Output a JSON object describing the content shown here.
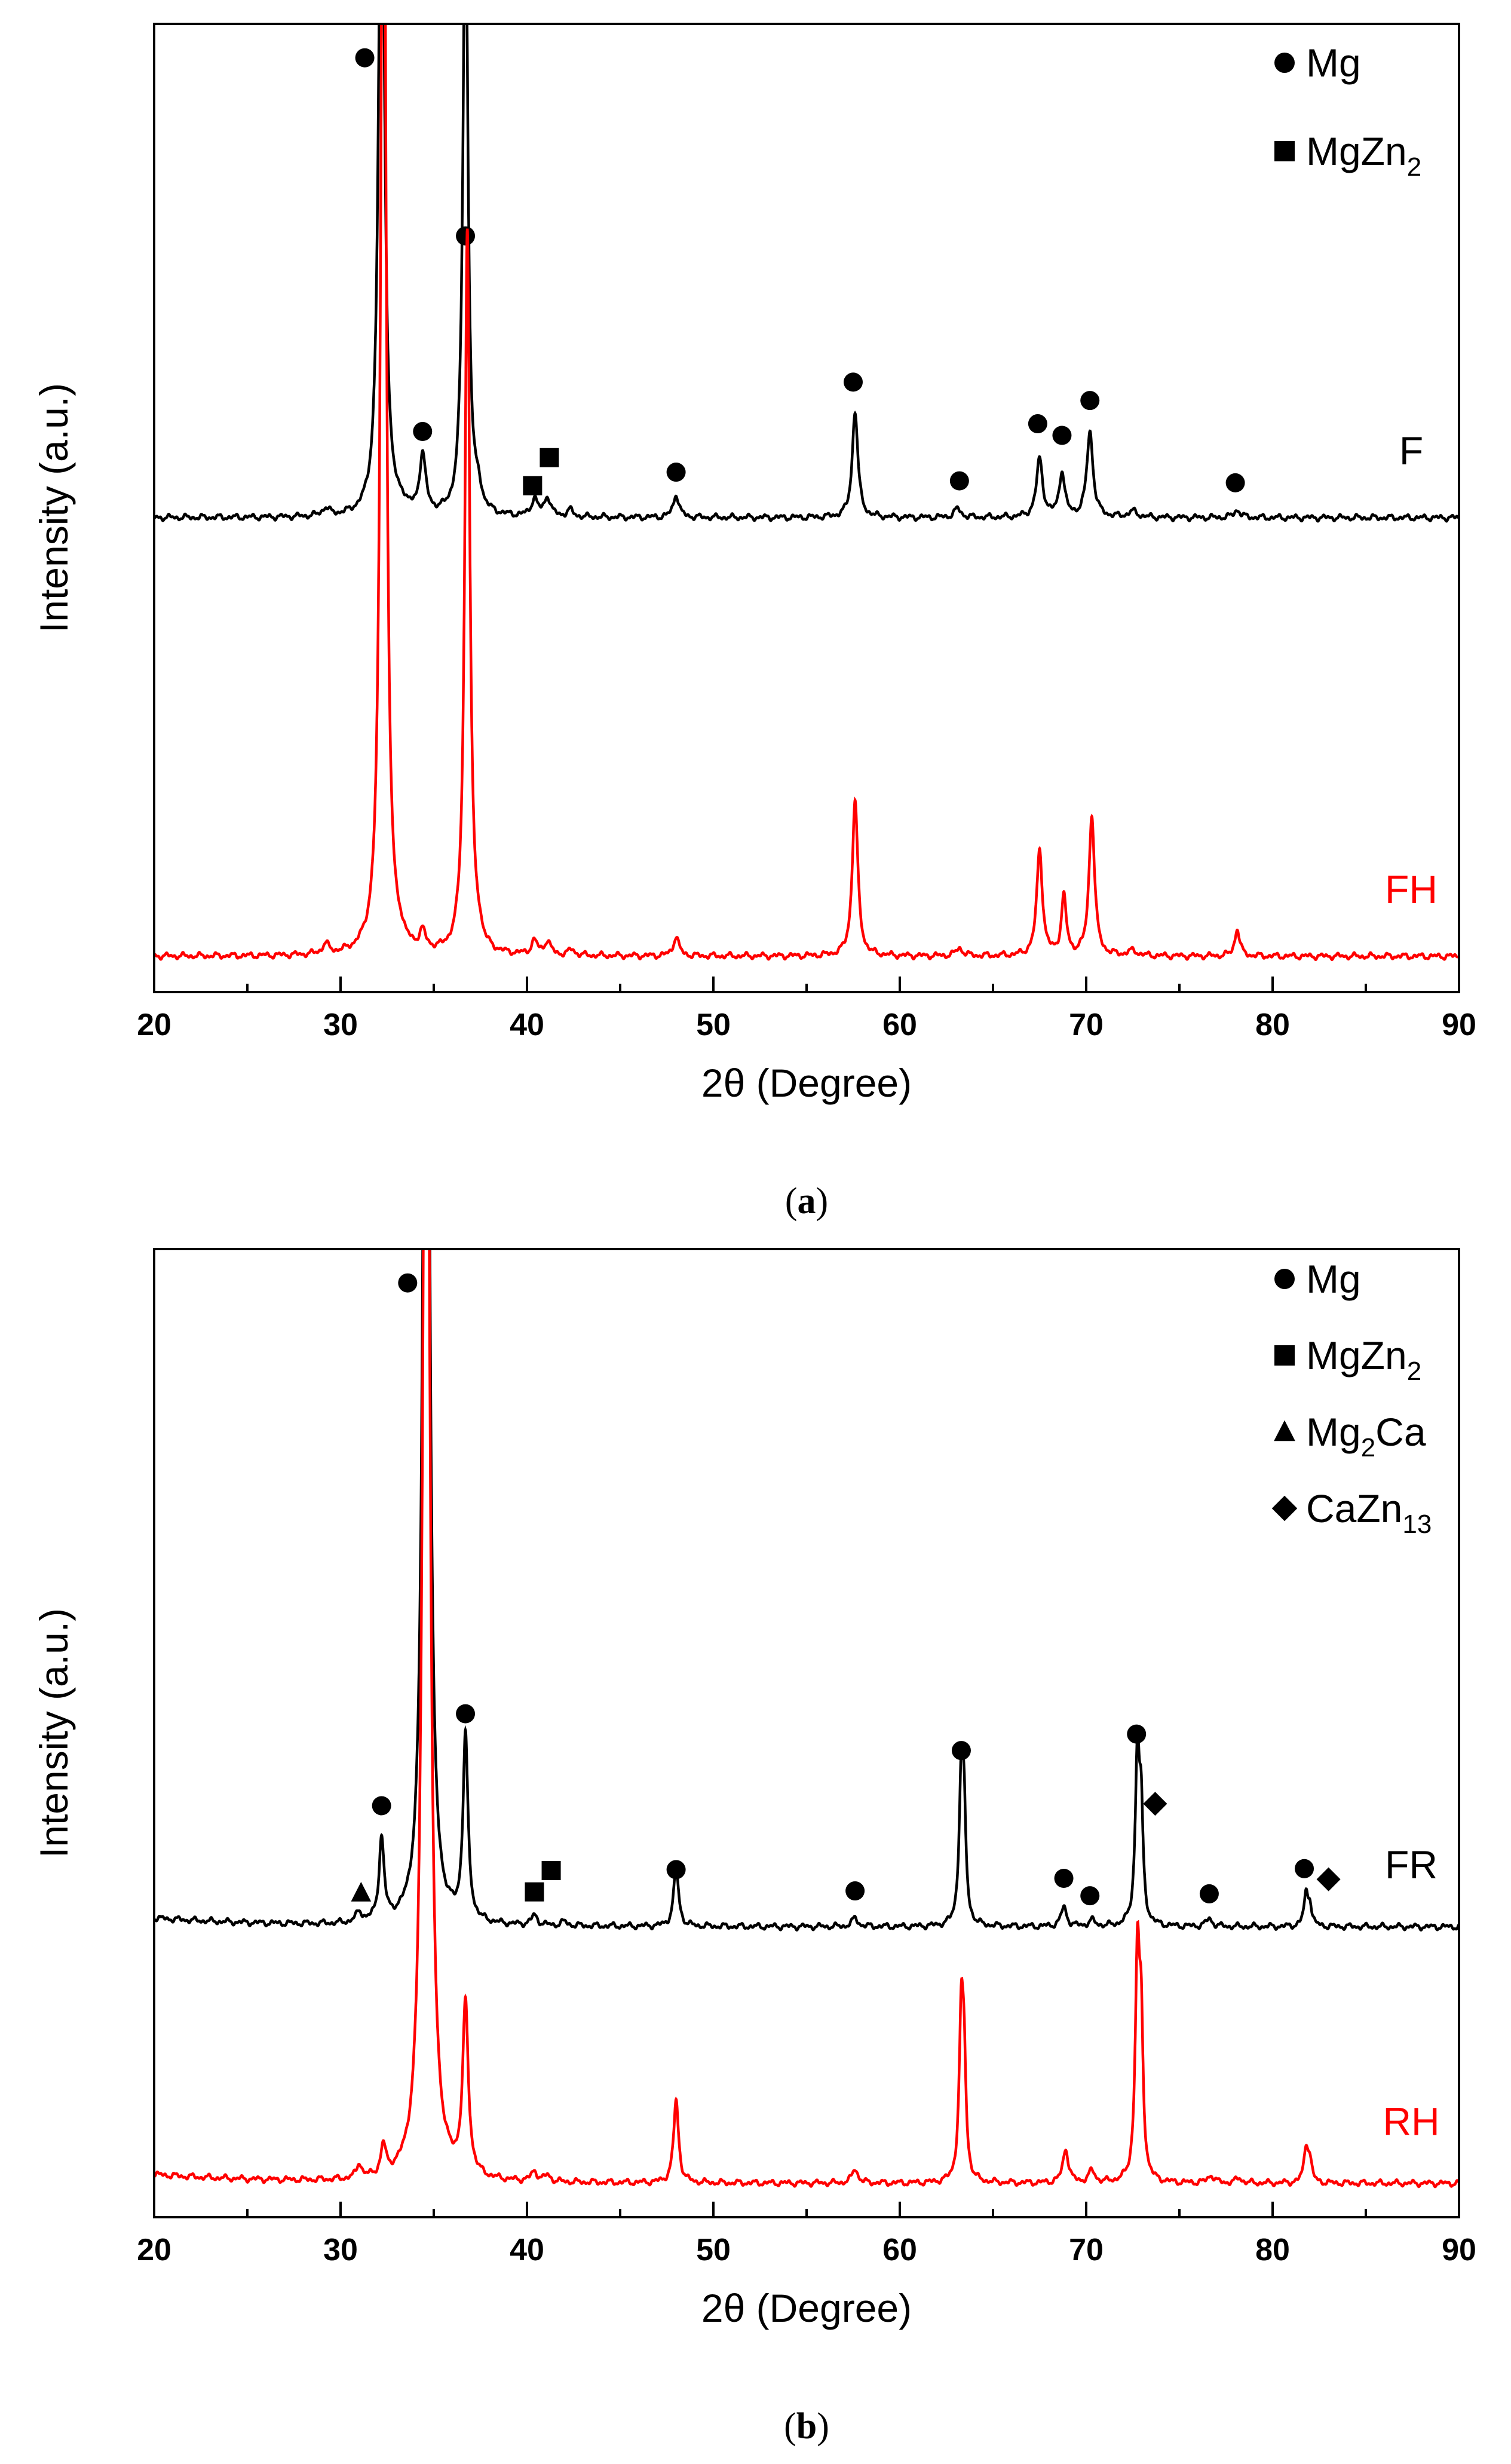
{
  "chart_data": [
    {
      "type": "line",
      "panel_label": "(a)",
      "panel_letter": "a",
      "xlabel": "2θ (Degree)",
      "ylabel": "Intensity (a.u.)",
      "xlim": [
        20,
        90
      ],
      "ylim": [
        0,
        100
      ],
      "xticks": [
        20,
        30,
        40,
        50,
        60,
        70,
        80,
        90
      ],
      "legend": {
        "position": "top-right",
        "entries": [
          {
            "marker": "circle",
            "label": "Mg"
          },
          {
            "marker": "square",
            "label": "MgZn",
            "sub": "2"
          }
        ]
      },
      "series": [
        {
          "name": "F",
          "color": "#000000",
          "baseline": 49,
          "peaks": [
            [
              29.2,
              0.8,
              0.22
            ],
            [
              32.2,
              80,
              0.18
            ],
            [
              33.3,
              0.8,
              0.2
            ],
            [
              34.4,
              6,
              0.2
            ],
            [
              36.7,
              66,
              0.16
            ],
            [
              37.4,
              1.8,
              0.2
            ],
            [
              40.4,
              1.8,
              0.2
            ],
            [
              41.1,
              2,
              0.2
            ],
            [
              42.3,
              0.7,
              0.2
            ],
            [
              48.0,
              2.4,
              0.18
            ],
            [
              57.6,
              11,
              0.18
            ],
            [
              63.1,
              0.9,
              0.22
            ],
            [
              67.5,
              6,
              0.2
            ],
            [
              68.7,
              4.6,
              0.18
            ],
            [
              70.2,
              8.8,
              0.2
            ],
            [
              72.5,
              0.6,
              0.3
            ],
            [
              78.1,
              0.8,
              0.2
            ]
          ],
          "markers": [
            {
              "shape": "circle",
              "x": 31.3,
              "y": 96.5
            },
            {
              "shape": "circle",
              "x": 34.4,
              "y": 57.9
            },
            {
              "shape": "circle",
              "x": 36.7,
              "y": 78.1
            },
            {
              "shape": "square",
              "x": 40.3,
              "y": 52.3
            },
            {
              "shape": "square",
              "x": 41.2,
              "y": 55.2
            },
            {
              "shape": "circle",
              "x": 48.0,
              "y": 53.7
            },
            {
              "shape": "circle",
              "x": 57.5,
              "y": 63.0
            },
            {
              "shape": "circle",
              "x": 63.2,
              "y": 52.8
            },
            {
              "shape": "circle",
              "x": 67.4,
              "y": 58.7
            },
            {
              "shape": "circle",
              "x": 68.7,
              "y": 57.5
            },
            {
              "shape": "circle",
              "x": 70.2,
              "y": 61.1
            },
            {
              "shape": "circle",
              "x": 78.0,
              "y": 52.6
            }
          ],
          "label": "F"
        },
        {
          "name": "FH",
          "color": "#ff0000",
          "baseline": 3.7,
          "peaks": [
            [
              29.2,
              1.0,
              0.2
            ],
            [
              32.3,
              140,
              0.16
            ],
            [
              33.2,
              0.8,
              0.2
            ],
            [
              34.4,
              1.8,
              0.2
            ],
            [
              36.8,
              75,
              0.16
            ],
            [
              37.4,
              1.2,
              0.2
            ],
            [
              40.4,
              1.4,
              0.2
            ],
            [
              41.1,
              1.4,
              0.2
            ],
            [
              42.4,
              0.6,
              0.2
            ],
            [
              48.0,
              2.0,
              0.18
            ],
            [
              57.6,
              16,
              0.18
            ],
            [
              63.2,
              0.8,
              0.22
            ],
            [
              67.5,
              11,
              0.18
            ],
            [
              68.8,
              6,
              0.16
            ],
            [
              70.3,
              14.5,
              0.18
            ],
            [
              72.5,
              0.5,
              0.3
            ],
            [
              78.1,
              2.8,
              0.16
            ]
          ],
          "markers": [],
          "label": "FH"
        }
      ]
    },
    {
      "type": "line",
      "panel_label": "(b)",
      "panel_letter": "b",
      "xlabel": "2θ (Degree)",
      "ylabel": "Intensity (a.u.)",
      "xlim": [
        20,
        90
      ],
      "ylim": [
        0,
        100
      ],
      "xticks": [
        20,
        30,
        40,
        50,
        60,
        70,
        80,
        90
      ],
      "legend": {
        "position": "top-right",
        "entries": [
          {
            "marker": "circle",
            "label": "Mg"
          },
          {
            "marker": "square",
            "label": "MgZn",
            "sub": "2"
          },
          {
            "marker": "triangle",
            "label": "Mg",
            "sub": "2",
            "tail": "Ca"
          },
          {
            "marker": "diamond",
            "label": "CaZn",
            "sub": "13"
          }
        ]
      },
      "series": [
        {
          "name": "FR",
          "color": "#000000",
          "baseline": 30,
          "peaks": [
            [
              31.0,
              1.0,
              0.2
            ],
            [
              32.2,
              8.5,
              0.16
            ],
            [
              34.6,
              150,
              0.18
            ],
            [
              36.7,
              19,
              0.16
            ],
            [
              40.4,
              1.0,
              0.2
            ],
            [
              42.0,
              0.4,
              0.2
            ],
            [
              48.0,
              6.0,
              0.16
            ],
            [
              57.6,
              0.9,
              0.18
            ],
            [
              63.3,
              15,
              0.14
            ],
            [
              63.45,
              9,
              0.12
            ],
            [
              68.8,
              2.0,
              0.18
            ],
            [
              70.3,
              0.6,
              0.2
            ],
            [
              72.75,
              17.5,
              0.14
            ],
            [
              72.95,
              10,
              0.12
            ],
            [
              76.6,
              0.8,
              0.2
            ],
            [
              81.8,
              3.2,
              0.14
            ],
            [
              82.0,
              2.0,
              0.12
            ]
          ],
          "markers": [
            {
              "shape": "triangle",
              "x": 31.1,
              "y": 33.5
            },
            {
              "shape": "circle",
              "x": 32.2,
              "y": 42.5
            },
            {
              "shape": "circle",
              "x": 33.6,
              "y": 96.5
            },
            {
              "shape": "circle",
              "x": 36.7,
              "y": 52.0
            },
            {
              "shape": "square",
              "x": 40.4,
              "y": 33.6
            },
            {
              "shape": "square",
              "x": 41.3,
              "y": 35.8
            },
            {
              "shape": "circle",
              "x": 48.0,
              "y": 35.9
            },
            {
              "shape": "circle",
              "x": 57.6,
              "y": 33.7
            },
            {
              "shape": "circle",
              "x": 63.3,
              "y": 48.2
            },
            {
              "shape": "circle",
              "x": 68.8,
              "y": 35.0
            },
            {
              "shape": "circle",
              "x": 70.2,
              "y": 33.2
            },
            {
              "shape": "diamond",
              "x": 73.7,
              "y": 42.7
            },
            {
              "shape": "circle",
              "x": 72.7,
              "y": 49.9
            },
            {
              "shape": "circle",
              "x": 76.6,
              "y": 33.4
            },
            {
              "shape": "circle",
              "x": 81.7,
              "y": 36.0
            },
            {
              "shape": "diamond",
              "x": 83.0,
              "y": 34.9
            }
          ],
          "label": "FR"
        },
        {
          "name": "RH",
          "color": "#ff0000",
          "baseline": 3.5,
          "peaks": [
            [
              31.0,
              1.5,
              0.16
            ],
            [
              32.3,
              3.0,
              0.16
            ],
            [
              34.6,
              160,
              0.2
            ],
            [
              36.7,
              17.5,
              0.18
            ],
            [
              40.4,
              1.0,
              0.2
            ],
            [
              41.1,
              0.6,
              0.2
            ],
            [
              48.0,
              8.5,
              0.16
            ],
            [
              57.6,
              1.5,
              0.18
            ],
            [
              63.3,
              16.5,
              0.14
            ],
            [
              63.45,
              10,
              0.12
            ],
            [
              68.9,
              3.5,
              0.18
            ],
            [
              70.3,
              1.2,
              0.2
            ],
            [
              72.75,
              23,
              0.14
            ],
            [
              72.95,
              14,
              0.12
            ],
            [
              76.7,
              0.8,
              0.2
            ],
            [
              78.2,
              0.5,
              0.2
            ],
            [
              81.8,
              3.7,
              0.14
            ],
            [
              82.0,
              2.0,
              0.12
            ]
          ],
          "markers": [],
          "label": "RH"
        }
      ]
    }
  ]
}
